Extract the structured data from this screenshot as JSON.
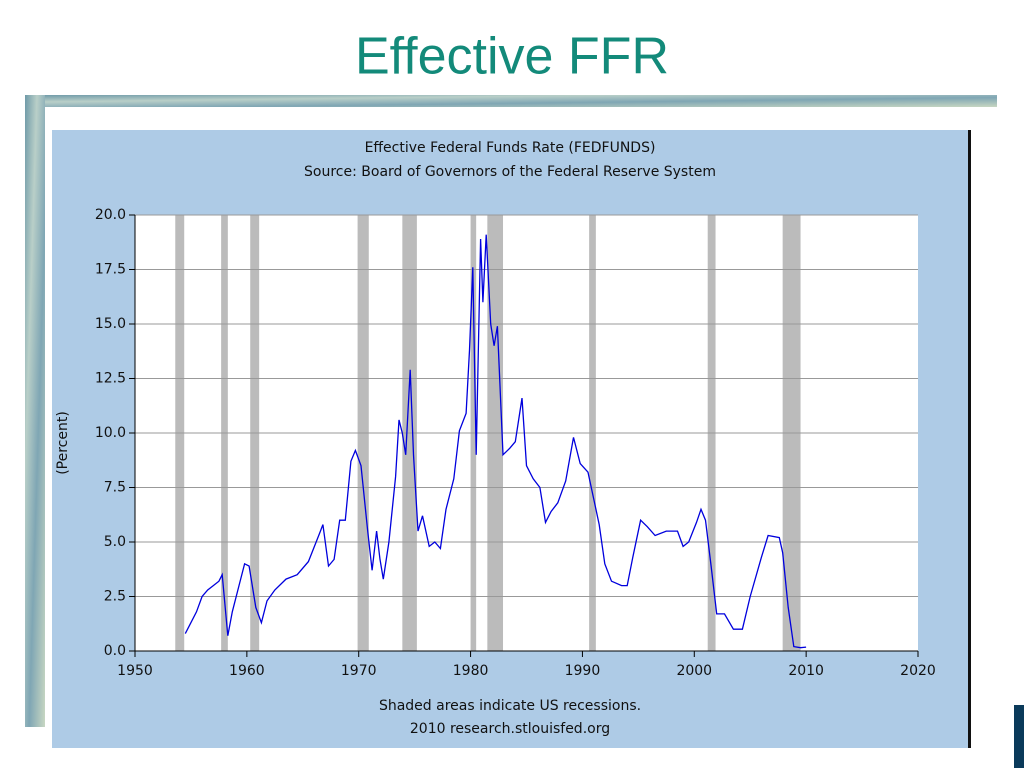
{
  "slide_title": "Effective FFR",
  "chart_data": {
    "type": "line",
    "title": "Effective Federal Funds Rate (FEDFUNDS)",
    "subtitle": "Source: Board of Governors of the Federal Reserve System",
    "ylabel": "(Percent)",
    "notes": [
      "Shaded areas indicate US recessions.",
      "2010 research.stlouisfed.org"
    ],
    "xlim": [
      1950,
      2020
    ],
    "xticks": [
      1950,
      1960,
      1970,
      1980,
      1990,
      2000,
      2010,
      2020
    ],
    "ylim": [
      0,
      20
    ],
    "yticks": [
      {
        "value": 0,
        "label": "0.0"
      },
      2.5,
      {
        "value": 5,
        "label": "5.0"
      },
      7.5,
      {
        "value": 10,
        "label": "10.0"
      },
      12.5,
      {
        "value": 15,
        "label": "15.0"
      },
      17.5,
      {
        "value": 20,
        "label": "20.0"
      }
    ],
    "grid": true,
    "recession_color": "#bbbbbb",
    "recessions": [
      [
        1953.6,
        1954.4
      ],
      [
        1957.7,
        1958.3
      ],
      [
        1960.3,
        1961.1
      ],
      [
        1969.9,
        1970.9
      ],
      [
        1973.9,
        1975.2
      ],
      [
        1980.0,
        1980.5
      ],
      [
        1981.5,
        1982.9
      ],
      [
        1990.6,
        1991.2
      ],
      [
        2001.2,
        2001.9
      ],
      [
        2007.9,
        2009.5
      ]
    ],
    "series": [
      {
        "name": "FEDFUNDS",
        "color": "#0000dd",
        "x": [
          1954.5,
          1955,
          1955.5,
          1956,
          1956.5,
          1957,
          1957.5,
          1957.8,
          1958.3,
          1958.7,
          1959.3,
          1959.8,
          1960.2,
          1960.8,
          1961.3,
          1961.8,
          1962.5,
          1963.5,
          1964.5,
          1965.5,
          1966.5,
          1966.8,
          1967.3,
          1967.8,
          1968.3,
          1968.8,
          1969.3,
          1969.7,
          1970.2,
          1970.8,
          1971.2,
          1971.6,
          1971.9,
          1972.2,
          1972.7,
          1973.3,
          1973.6,
          1973.9,
          1974.2,
          1974.6,
          1974.9,
          1975.3,
          1975.7,
          1976.3,
          1976.8,
          1977.3,
          1977.8,
          1978.5,
          1979.0,
          1979.6,
          1979.9,
          1980.2,
          1980.5,
          1980.9,
          1981.1,
          1981.4,
          1981.8,
          1982.1,
          1982.4,
          1982.9,
          1983.5,
          1984.0,
          1984.6,
          1985.0,
          1985.6,
          1986.2,
          1986.7,
          1987.2,
          1987.8,
          1988.5,
          1989.2,
          1989.8,
          1990.5,
          1991.0,
          1991.5,
          1992.0,
          1992.6,
          1993.5,
          1994.0,
          1994.5,
          1995.2,
          1995.8,
          1996.5,
          1997.5,
          1998.5,
          1999.0,
          1999.5,
          2000.2,
          2000.6,
          2001.0,
          2001.5,
          2002.0,
          2002.7,
          2003.5,
          2004.3,
          2005.0,
          2006.0,
          2006.6,
          2007.6,
          2007.9,
          2008.4,
          2008.9,
          2009.5,
          2010.0
        ],
        "values": [
          0.8,
          1.3,
          1.8,
          2.5,
          2.8,
          3.0,
          3.2,
          3.5,
          0.7,
          1.8,
          3.0,
          4.0,
          3.9,
          2.0,
          1.3,
          2.3,
          2.8,
          3.3,
          3.5,
          4.1,
          5.4,
          5.8,
          3.9,
          4.2,
          6.0,
          6.0,
          8.7,
          9.2,
          8.5,
          5.5,
          3.7,
          5.5,
          4.2,
          3.3,
          5.0,
          8.0,
          10.6,
          10.0,
          9.0,
          12.9,
          9.0,
          5.5,
          6.2,
          4.8,
          5.0,
          4.7,
          6.5,
          7.9,
          10.1,
          10.9,
          13.8,
          17.6,
          9.0,
          18.9,
          16.0,
          19.1,
          15.0,
          14.0,
          14.9,
          9.0,
          9.3,
          9.6,
          11.6,
          8.5,
          7.9,
          7.5,
          5.9,
          6.4,
          6.8,
          7.8,
          9.8,
          8.6,
          8.2,
          7.0,
          5.8,
          4.0,
          3.2,
          3.0,
          3.0,
          4.3,
          6.0,
          5.7,
          5.3,
          5.5,
          5.5,
          4.8,
          5.0,
          5.9,
          6.5,
          6.0,
          3.9,
          1.7,
          1.7,
          1.0,
          1.0,
          2.5,
          4.3,
          5.3,
          5.2,
          4.5,
          2.0,
          0.2,
          0.15,
          0.18
        ]
      }
    ]
  }
}
